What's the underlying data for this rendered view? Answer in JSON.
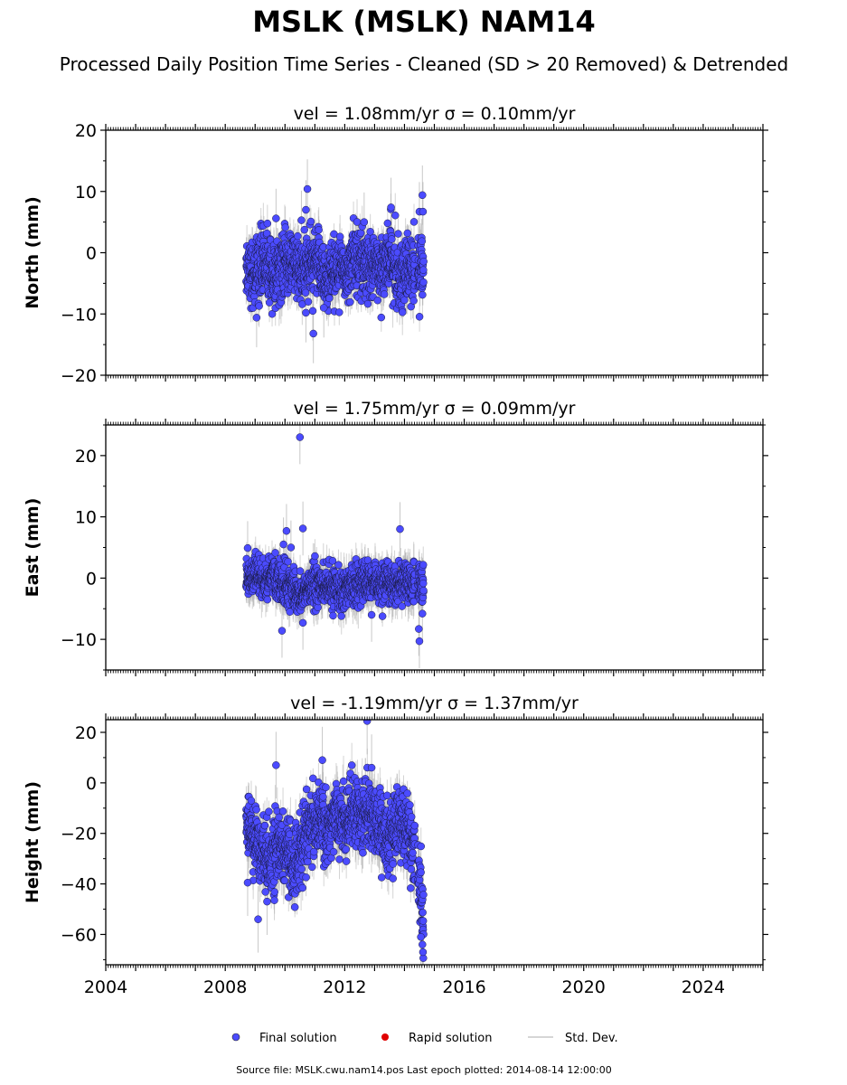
{
  "title": "MSLK (MSLK) NAM14",
  "subtitle": "Processed Daily Position Time Series - Cleaned (SD > 20 Removed) & Detrended",
  "legend": {
    "final": "Final solution",
    "rapid": "Rapid solution",
    "sd": "Std. Dev."
  },
  "source": "Source file: MSLK.cwu.nam14.pos  Last epoch plotted: 2014-08-14 12:00:00",
  "colors": {
    "final": "#4b4bff",
    "rapid": "#e00000",
    "sd": "#b0b0b0"
  },
  "chart_data": [
    {
      "type": "scatter",
      "title": "vel = 1.08mm/yr   σ = 0.10mm/yr",
      "ylabel": "North (mm)",
      "xlim": [
        2004.0,
        2026.0
      ],
      "ylim": [
        -20,
        20
      ],
      "yticks": [
        -20,
        -10,
        0,
        10,
        20
      ],
      "xticks": [
        2004,
        2008,
        2012,
        2016,
        2020,
        2024
      ],
      "segments": [
        {
          "x": [
            2008.7,
            2009.0,
            2009.3,
            2009.6,
            2009.9,
            2010.2,
            2010.5,
            2010.8,
            2011.1,
            2011.4,
            2011.7,
            2012.0,
            2012.3,
            2012.6,
            2012.9,
            2013.2,
            2013.5,
            2013.8,
            2014.1,
            2014.35
          ],
          "y": [
            -2.0,
            -3.5,
            -1.0,
            -4.0,
            -2.5,
            -1.5,
            -3.0,
            -2.5,
            -1.0,
            -4.5,
            -2.0,
            -3.5,
            -0.5,
            -1.5,
            -3.0,
            -2.0,
            -1.0,
            -3.5,
            -2.5,
            -4.0
          ]
        },
        {
          "x": [
            2014.45,
            2014.64
          ],
          "y": [
            -2.0,
            -3.0
          ]
        }
      ],
      "scatter": 2.6,
      "sd": 2.2,
      "outliers": [
        {
          "x": 2010.75,
          "y": 10.4
        },
        {
          "x": 2010.7,
          "y": 7.0
        },
        {
          "x": 2010.55,
          "y": 5.3
        },
        {
          "x": 2009.7,
          "y": 5.6
        },
        {
          "x": 2013.55,
          "y": 7.4
        },
        {
          "x": 2014.6,
          "y": 9.4
        },
        {
          "x": 2014.5,
          "y": 6.7
        },
        {
          "x": 2014.62,
          "y": 6.7
        },
        {
          "x": 2010.95,
          "y": -13.2
        },
        {
          "x": 2009.05,
          "y": -10.6
        },
        {
          "x": 2010.7,
          "y": -9.8
        },
        {
          "x": 2010.93,
          "y": -9.5
        },
        {
          "x": 2011.3,
          "y": -9.0
        },
        {
          "x": 2012.65,
          "y": 5.0
        }
      ]
    },
    {
      "type": "scatter",
      "title": "vel = 1.75mm/yr   σ = 0.09mm/yr",
      "ylabel": "East (mm)",
      "xlim": [
        2004.0,
        2026.0
      ],
      "ylim": [
        -15,
        25
      ],
      "yticks": [
        -10,
        0,
        10,
        20
      ],
      "xticks": [
        2004,
        2008,
        2012,
        2016,
        2020,
        2024
      ],
      "segments": [
        {
          "x": [
            2008.7,
            2009.0,
            2009.3,
            2009.6,
            2009.9,
            2010.2,
            2010.5,
            2010.8,
            2011.1,
            2011.4,
            2011.7,
            2012.0,
            2012.3,
            2012.6,
            2012.9,
            2013.2,
            2013.5,
            2013.8,
            2014.1,
            2014.35
          ],
          "y": [
            0.5,
            0.0,
            -0.5,
            0.5,
            -1.0,
            -1.5,
            -3.0,
            -1.5,
            -1.0,
            -1.5,
            -2.0,
            -1.5,
            -1.0,
            -0.5,
            -1.0,
            -1.5,
            -0.5,
            -1.0,
            -0.5,
            -1.0
          ]
        },
        {
          "x": [
            2014.45,
            2014.64
          ],
          "y": [
            -1.0,
            -1.5
          ]
        }
      ],
      "scatter": 1.6,
      "sd": 2.0,
      "outliers": [
        {
          "x": 2010.5,
          "y": 23.0
        },
        {
          "x": 2010.6,
          "y": 8.1
        },
        {
          "x": 2013.85,
          "y": 8.0
        },
        {
          "x": 2010.05,
          "y": 7.7
        },
        {
          "x": 2009.95,
          "y": 5.5
        },
        {
          "x": 2010.2,
          "y": 5.0
        },
        {
          "x": 2008.75,
          "y": 4.9
        },
        {
          "x": 2014.5,
          "y": -10.3
        },
        {
          "x": 2014.48,
          "y": -8.3
        },
        {
          "x": 2009.9,
          "y": -8.6
        },
        {
          "x": 2014.6,
          "y": -5.8
        },
        {
          "x": 2012.9,
          "y": -6.0
        },
        {
          "x": 2010.6,
          "y": -7.3
        }
      ]
    },
    {
      "type": "scatter",
      "title": "vel = -1.19mm/yr   σ = 1.37mm/yr",
      "ylabel": "Height (mm)",
      "xlim": [
        2004.0,
        2026.0
      ],
      "ylim": [
        -72,
        25
      ],
      "yticks": [
        -60,
        -40,
        -20,
        0,
        20
      ],
      "xticks": [
        2004,
        2008,
        2012,
        2016,
        2020,
        2024
      ],
      "xticklabels": [
        "2004",
        "2008",
        "2012",
        "2016",
        "2020",
        "2024"
      ],
      "segments": [
        {
          "x": [
            2008.7,
            2009.0,
            2009.3,
            2009.6,
            2009.9,
            2010.2,
            2010.5,
            2010.8,
            2011.1,
            2011.4,
            2011.7,
            2012.0,
            2012.3,
            2012.6,
            2012.9,
            2013.2,
            2013.5,
            2013.8,
            2014.1,
            2014.35
          ],
          "y": [
            -15,
            -22,
            -28,
            -30,
            -25,
            -32,
            -28,
            -18,
            -14,
            -18,
            -12,
            -16,
            -10,
            -14,
            -12,
            -20,
            -22,
            -14,
            -20,
            -25
          ]
        },
        {
          "x": [
            2014.45,
            2014.55,
            2014.64
          ],
          "y": [
            -35,
            -45,
            -58
          ]
        }
      ],
      "scatter": 6.5,
      "sd": 6.0,
      "outliers": [
        {
          "x": 2012.75,
          "y": 24.5
        },
        {
          "x": 2011.25,
          "y": 9.0
        },
        {
          "x": 2009.7,
          "y": 7.0
        },
        {
          "x": 2012.9,
          "y": 6.0
        },
        {
          "x": 2014.62,
          "y": -67.0
        },
        {
          "x": 2014.6,
          "y": -64.0
        },
        {
          "x": 2014.55,
          "y": -61.0
        },
        {
          "x": 2009.1,
          "y": -54.0
        },
        {
          "x": 2008.75,
          "y": -39.5
        },
        {
          "x": 2009.4,
          "y": -47.0
        }
      ]
    }
  ]
}
